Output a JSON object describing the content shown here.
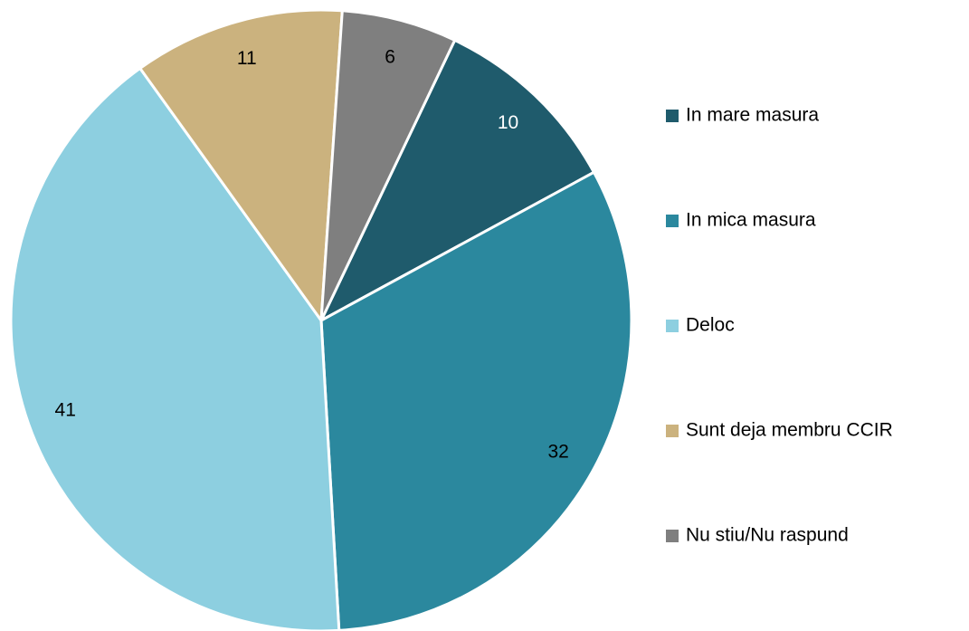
{
  "chart_data": {
    "type": "pie",
    "categories": [
      "In mare masura",
      "In mica masura",
      "Deloc",
      "Sunt deja membru CCIR",
      "Nu stiu/Nu raspund"
    ],
    "values": [
      10,
      32,
      41,
      11,
      6
    ],
    "colors": [
      "#1f5b6c",
      "#2b889e",
      "#8dcfe0",
      "#cbb27e",
      "#7f7f7f"
    ],
    "label_colors": [
      "#ffffff",
      "#000000",
      "#000000",
      "#000000",
      "#000000"
    ]
  }
}
